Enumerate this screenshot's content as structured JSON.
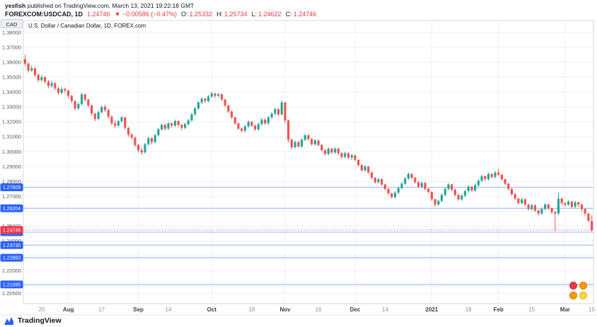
{
  "header": {
    "line1": {
      "author": "yesfish",
      "rest": " published on TradingView.com, March 13, 2021 19:22:18 GMT"
    },
    "line2": {
      "symbol": "FOREXCOM:USDCAD, 1D",
      "price": "1.24746",
      "change": "▼ −0.00586 (−0.47%)",
      "ohlc": [
        {
          "k": "O:",
          "v": "1.25332"
        },
        {
          "k": "H:",
          "v": "1.25734"
        },
        {
          "k": "L:",
          "v": "1.24622"
        },
        {
          "k": "C:",
          "v": "1.24746"
        }
      ]
    }
  },
  "chart": {
    "legend": "U.S. Dollar / Canadian Dollar, 1D, FOREX.com",
    "currency_label": "CAD"
  },
  "footer": {
    "brand": "TradingView"
  },
  "chart_data": {
    "type": "candlestick",
    "title": "U.S. Dollar / Canadian Dollar",
    "symbol": "FOREXCOM:USDCAD",
    "timeframe": "1D",
    "price_range": [
      1.198,
      1.388
    ],
    "grid_step": 0.01,
    "colors": {
      "up": "#26a69a",
      "down": "#ef5350",
      "level_line": "#2962ff",
      "level_chip_bg": "#2962ff",
      "last_chip_bg": "#f23645",
      "grid": "#eef0f5",
      "axis_text": "#55585e",
      "border": "#d6d9e0"
    },
    "y_axis_labels": [
      "1.38000",
      "1.37000",
      "1.36000",
      "1.35000",
      "1.34000",
      "1.33000",
      "1.32000",
      "1.31000",
      "1.30000",
      "1.29000",
      "1.28000",
      "1.27000",
      "1.26000",
      "1.25000",
      "1.24000",
      "1.23000",
      "1.22000",
      "1.21000",
      "1.20500"
    ],
    "levels": [
      {
        "price": 1.27609,
        "label": "1.27609"
      },
      {
        "price": 1.26204,
        "label": "1.26204"
      },
      {
        "price": 1.24597,
        "label": "1.24597"
      },
      {
        "price": 1.2373,
        "label": "1.23730"
      },
      {
        "price": 1.22883,
        "label": "1.22883"
      },
      {
        "price": 1.21085,
        "label": "1.21085"
      }
    ],
    "last_price": {
      "price": 1.24746,
      "label": "1.24746"
    },
    "x_ticks": [
      {
        "label": "20",
        "i": 5,
        "major": false
      },
      {
        "label": "Aug",
        "i": 13,
        "major": true
      },
      {
        "label": "17",
        "i": 23,
        "major": false
      },
      {
        "label": "Sep",
        "i": 34,
        "major": true
      },
      {
        "label": "14",
        "i": 43,
        "major": false
      },
      {
        "label": "Oct",
        "i": 56,
        "major": true
      },
      {
        "label": "19",
        "i": 68,
        "major": false
      },
      {
        "label": "Nov",
        "i": 78,
        "major": true
      },
      {
        "label": "16",
        "i": 88,
        "major": false
      },
      {
        "label": "Dec",
        "i": 99,
        "major": true
      },
      {
        "label": "14",
        "i": 108,
        "major": false
      },
      {
        "label": "2021",
        "i": 122,
        "major": true
      },
      {
        "label": "18",
        "i": 133,
        "major": false
      },
      {
        "label": "Feb",
        "i": 142,
        "major": true
      },
      {
        "label": "15",
        "i": 152,
        "major": false
      },
      {
        "label": "Mar",
        "i": 162,
        "major": true
      },
      {
        "label": "15",
        "i": 170,
        "major": false
      }
    ],
    "sticker_colors": [
      "#f23645",
      "#ff9800",
      "#ff9800",
      "#fdd835"
    ],
    "candles": [
      [
        1.362,
        1.365,
        1.3575,
        1.359
      ],
      [
        1.359,
        1.36,
        1.353,
        1.3545
      ],
      [
        1.3545,
        1.358,
        1.3535,
        1.356
      ],
      [
        1.356,
        1.3565,
        1.35,
        1.3515
      ],
      [
        1.3515,
        1.3525,
        1.3465,
        1.348
      ],
      [
        1.348,
        1.3515,
        1.347,
        1.35
      ],
      [
        1.35,
        1.3505,
        1.3455,
        1.347
      ],
      [
        1.347,
        1.348,
        1.3425,
        1.344
      ],
      [
        1.344,
        1.3475,
        1.343,
        1.346
      ],
      [
        1.346,
        1.3465,
        1.341,
        1.3425
      ],
      [
        1.3425,
        1.3435,
        1.338,
        1.3395
      ],
      [
        1.3395,
        1.3435,
        1.3385,
        1.342
      ],
      [
        1.342,
        1.343,
        1.3395,
        1.341
      ],
      [
        1.341,
        1.3415,
        1.336,
        1.3375
      ],
      [
        1.3375,
        1.338,
        1.3325,
        1.334
      ],
      [
        1.334,
        1.3345,
        1.3275,
        1.329
      ],
      [
        1.329,
        1.333,
        1.328,
        1.332
      ],
      [
        1.332,
        1.3395,
        1.331,
        1.3385
      ],
      [
        1.3385,
        1.339,
        1.3335,
        1.335
      ],
      [
        1.335,
        1.3355,
        1.3295,
        1.331
      ],
      [
        1.331,
        1.3315,
        1.324,
        1.3255
      ],
      [
        1.3255,
        1.326,
        1.3205,
        1.322
      ],
      [
        1.322,
        1.3275,
        1.321,
        1.3265
      ],
      [
        1.3265,
        1.331,
        1.3255,
        1.33
      ],
      [
        1.33,
        1.3315,
        1.3265,
        1.328
      ],
      [
        1.328,
        1.3285,
        1.322,
        1.3235
      ],
      [
        1.3235,
        1.324,
        1.3175,
        1.319
      ],
      [
        1.319,
        1.321,
        1.316,
        1.3175
      ],
      [
        1.3175,
        1.3215,
        1.3165,
        1.3205
      ],
      [
        1.3205,
        1.324,
        1.3195,
        1.323
      ],
      [
        1.323,
        1.3235,
        1.3145,
        1.316
      ],
      [
        1.316,
        1.3165,
        1.31,
        1.3115
      ],
      [
        1.3115,
        1.3125,
        1.308,
        1.3095
      ],
      [
        1.3095,
        1.31,
        1.303,
        1.3045
      ],
      [
        1.3045,
        1.305,
        1.2995,
        1.301
      ],
      [
        1.301,
        1.3025,
        1.298,
        1.2995
      ],
      [
        1.2995,
        1.306,
        1.299,
        1.305
      ],
      [
        1.305,
        1.31,
        1.304,
        1.309
      ],
      [
        1.309,
        1.3095,
        1.305,
        1.3065
      ],
      [
        1.3065,
        1.312,
        1.3055,
        1.311
      ],
      [
        1.311,
        1.316,
        1.31,
        1.315
      ],
      [
        1.315,
        1.319,
        1.314,
        1.318
      ],
      [
        1.318,
        1.3185,
        1.314,
        1.3155
      ],
      [
        1.3155,
        1.32,
        1.3145,
        1.319
      ],
      [
        1.319,
        1.3195,
        1.316,
        1.3175
      ],
      [
        1.3175,
        1.3215,
        1.3165,
        1.3205
      ],
      [
        1.3205,
        1.321,
        1.3165,
        1.318
      ],
      [
        1.318,
        1.3185,
        1.3145,
        1.316
      ],
      [
        1.316,
        1.3195,
        1.315,
        1.3185
      ],
      [
        1.3185,
        1.322,
        1.3175,
        1.321
      ],
      [
        1.321,
        1.326,
        1.32,
        1.325
      ],
      [
        1.325,
        1.33,
        1.324,
        1.329
      ],
      [
        1.329,
        1.334,
        1.328,
        1.333
      ],
      [
        1.333,
        1.3365,
        1.332,
        1.3355
      ],
      [
        1.3355,
        1.336,
        1.3325,
        1.334
      ],
      [
        1.334,
        1.338,
        1.333,
        1.337
      ],
      [
        1.337,
        1.34,
        1.336,
        1.339
      ],
      [
        1.339,
        1.3395,
        1.336,
        1.3375
      ],
      [
        1.3375,
        1.3395,
        1.3365,
        1.3385
      ],
      [
        1.3385,
        1.339,
        1.334,
        1.335
      ],
      [
        1.335,
        1.3355,
        1.33,
        1.331
      ],
      [
        1.331,
        1.3315,
        1.326,
        1.327
      ],
      [
        1.327,
        1.3275,
        1.322,
        1.323
      ],
      [
        1.323,
        1.3235,
        1.318,
        1.319
      ],
      [
        1.319,
        1.3195,
        1.3145,
        1.3155
      ],
      [
        1.3155,
        1.3165,
        1.313,
        1.314
      ],
      [
        1.314,
        1.318,
        1.313,
        1.317
      ],
      [
        1.317,
        1.321,
        1.316,
        1.32
      ],
      [
        1.32,
        1.3205,
        1.3165,
        1.3175
      ],
      [
        1.3175,
        1.318,
        1.314,
        1.315
      ],
      [
        1.315,
        1.3195,
        1.314,
        1.3185
      ],
      [
        1.3185,
        1.3225,
        1.3175,
        1.3215
      ],
      [
        1.3215,
        1.322,
        1.318,
        1.319
      ],
      [
        1.319,
        1.324,
        1.318,
        1.323
      ],
      [
        1.323,
        1.3265,
        1.322,
        1.3255
      ],
      [
        1.3255,
        1.3295,
        1.3245,
        1.3285
      ],
      [
        1.3285,
        1.329,
        1.324,
        1.325
      ],
      [
        1.325,
        1.3345,
        1.3245,
        1.333
      ],
      [
        1.333,
        1.3335,
        1.319,
        1.321
      ],
      [
        1.321,
        1.3215,
        1.306,
        1.308
      ],
      [
        1.308,
        1.309,
        1.3015,
        1.303
      ],
      [
        1.303,
        1.3075,
        1.302,
        1.3065
      ],
      [
        1.3065,
        1.307,
        1.3025,
        1.3035
      ],
      [
        1.3035,
        1.309,
        1.3025,
        1.308
      ],
      [
        1.308,
        1.312,
        1.307,
        1.311
      ],
      [
        1.311,
        1.3115,
        1.3075,
        1.3085
      ],
      [
        1.3085,
        1.309,
        1.304,
        1.305
      ],
      [
        1.305,
        1.3085,
        1.304,
        1.3075
      ],
      [
        1.3075,
        1.308,
        1.3035,
        1.3045
      ],
      [
        1.3045,
        1.305,
        1.3,
        1.301
      ],
      [
        1.301,
        1.3015,
        1.2975,
        1.2985
      ],
      [
        1.2985,
        1.303,
        1.2975,
        1.302
      ],
      [
        1.302,
        1.3025,
        1.2985,
        1.2995
      ],
      [
        1.2995,
        1.303,
        1.2985,
        1.302
      ],
      [
        1.302,
        1.3025,
        1.2975,
        1.299
      ],
      [
        1.299,
        1.2995,
        1.295,
        1.2965
      ],
      [
        1.2965,
        1.3,
        1.2955,
        1.299
      ],
      [
        1.299,
        1.2995,
        1.295,
        1.296
      ],
      [
        1.296,
        1.2985,
        1.2945,
        1.2975
      ],
      [
        1.2975,
        1.298,
        1.2935,
        1.2945
      ],
      [
        1.2945,
        1.295,
        1.29,
        1.291
      ],
      [
        1.291,
        1.2915,
        1.2865,
        1.2875
      ],
      [
        1.2875,
        1.291,
        1.2865,
        1.29
      ],
      [
        1.29,
        1.2905,
        1.285,
        1.286
      ],
      [
        1.286,
        1.2865,
        1.2815,
        1.2825
      ],
      [
        1.2825,
        1.283,
        1.2785,
        1.2795
      ],
      [
        1.2795,
        1.2825,
        1.2785,
        1.2815
      ],
      [
        1.2815,
        1.282,
        1.277,
        1.278
      ],
      [
        1.278,
        1.2785,
        1.274,
        1.275
      ],
      [
        1.275,
        1.2755,
        1.271,
        1.272
      ],
      [
        1.272,
        1.2725,
        1.2685,
        1.2695
      ],
      [
        1.2695,
        1.2735,
        1.2685,
        1.2725
      ],
      [
        1.2725,
        1.2765,
        1.2715,
        1.2755
      ],
      [
        1.2755,
        1.2795,
        1.2745,
        1.2785
      ],
      [
        1.2785,
        1.283,
        1.2775,
        1.282
      ],
      [
        1.282,
        1.286,
        1.281,
        1.285
      ],
      [
        1.285,
        1.2855,
        1.2815,
        1.2825
      ],
      [
        1.2825,
        1.283,
        1.2785,
        1.2795
      ],
      [
        1.2795,
        1.28,
        1.2755,
        1.2765
      ],
      [
        1.2765,
        1.28,
        1.2755,
        1.279
      ],
      [
        1.279,
        1.2795,
        1.274,
        1.275
      ],
      [
        1.275,
        1.2755,
        1.272,
        1.273
      ],
      [
        1.273,
        1.2735,
        1.267,
        1.268
      ],
      [
        1.268,
        1.2685,
        1.263,
        1.2645
      ],
      [
        1.2645,
        1.268,
        1.2635,
        1.267
      ],
      [
        1.267,
        1.272,
        1.266,
        1.271
      ],
      [
        1.271,
        1.276,
        1.27,
        1.275
      ],
      [
        1.275,
        1.279,
        1.274,
        1.278
      ],
      [
        1.278,
        1.2785,
        1.2735,
        1.2745
      ],
      [
        1.2745,
        1.275,
        1.27,
        1.271
      ],
      [
        1.271,
        1.2715,
        1.267,
        1.268
      ],
      [
        1.268,
        1.2715,
        1.267,
        1.2705
      ],
      [
        1.2705,
        1.2745,
        1.2695,
        1.2735
      ],
      [
        1.2735,
        1.2775,
        1.2725,
        1.2765
      ],
      [
        1.2765,
        1.277,
        1.273,
        1.274
      ],
      [
        1.274,
        1.2785,
        1.273,
        1.2775
      ],
      [
        1.2775,
        1.2815,
        1.2765,
        1.2805
      ],
      [
        1.2805,
        1.2845,
        1.2795,
        1.2835
      ],
      [
        1.2835,
        1.284,
        1.2805,
        1.2815
      ],
      [
        1.2815,
        1.286,
        1.2805,
        1.285
      ],
      [
        1.285,
        1.2855,
        1.282,
        1.283
      ],
      [
        1.283,
        1.287,
        1.282,
        1.286
      ],
      [
        1.286,
        1.2885,
        1.2835,
        1.2845
      ],
      [
        1.2845,
        1.285,
        1.2805,
        1.2815
      ],
      [
        1.2815,
        1.282,
        1.2775,
        1.2785
      ],
      [
        1.2785,
        1.279,
        1.274,
        1.275
      ],
      [
        1.275,
        1.2755,
        1.2705,
        1.2715
      ],
      [
        1.2715,
        1.272,
        1.2675,
        1.2685
      ],
      [
        1.2685,
        1.269,
        1.2645,
        1.2655
      ],
      [
        1.2655,
        1.269,
        1.2645,
        1.268
      ],
      [
        1.268,
        1.2685,
        1.2635,
        1.2645
      ],
      [
        1.2645,
        1.265,
        1.2605,
        1.2615
      ],
      [
        1.2615,
        1.265,
        1.2605,
        1.264
      ],
      [
        1.264,
        1.2645,
        1.2595,
        1.2605
      ],
      [
        1.2605,
        1.261,
        1.257,
        1.2585
      ],
      [
        1.2585,
        1.2625,
        1.2575,
        1.2615
      ],
      [
        1.2615,
        1.2655,
        1.2605,
        1.2645
      ],
      [
        1.2645,
        1.265,
        1.261,
        1.262
      ],
      [
        1.262,
        1.2625,
        1.258,
        1.2595
      ],
      [
        1.2595,
        1.26,
        1.2468,
        1.2585
      ],
      [
        1.2585,
        1.2725,
        1.2575,
        1.2685
      ],
      [
        1.2685,
        1.269,
        1.264,
        1.2655
      ],
      [
        1.2655,
        1.266,
        1.263,
        1.2645
      ],
      [
        1.2645,
        1.2675,
        1.2635,
        1.2665
      ],
      [
        1.2665,
        1.267,
        1.262,
        1.263
      ],
      [
        1.263,
        1.267,
        1.262,
        1.266
      ],
      [
        1.266,
        1.2665,
        1.263,
        1.2645
      ],
      [
        1.2645,
        1.265,
        1.26,
        1.2615
      ],
      [
        1.2615,
        1.262,
        1.257,
        1.2585
      ],
      [
        1.2585,
        1.259,
        1.2528,
        1.2535
      ],
      [
        1.25332,
        1.25734,
        1.24622,
        1.24746
      ]
    ]
  }
}
